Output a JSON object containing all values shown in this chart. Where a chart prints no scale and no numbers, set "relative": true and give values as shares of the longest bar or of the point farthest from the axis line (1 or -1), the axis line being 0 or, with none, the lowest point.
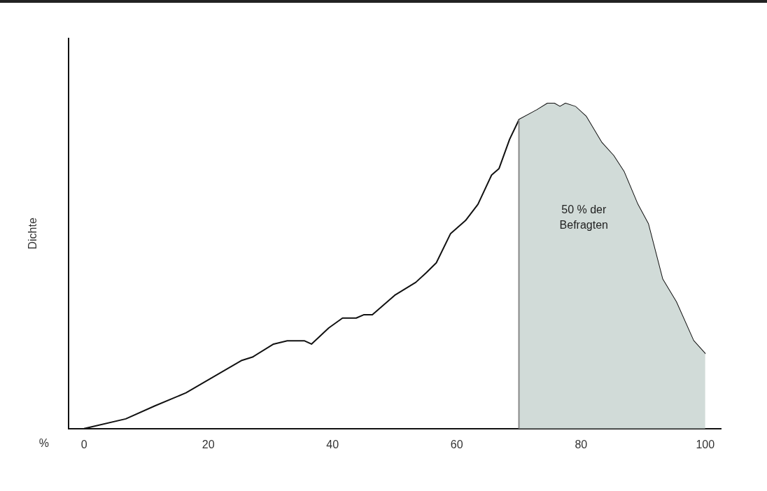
{
  "chart_data": {
    "type": "line",
    "relative": true,
    "xlabel": "%",
    "ylabel": "Dichte",
    "xlim": [
      -2.5,
      102.5
    ],
    "xticks": [
      0,
      20,
      40,
      60,
      80,
      100
    ],
    "grid": false,
    "legend": false,
    "marker": "none",
    "annotations": [
      "50 % der Befragten"
    ],
    "ref_lines": [
      {
        "axis": "x",
        "value": 70,
        "color": "#888888"
      }
    ],
    "series": [
      {
        "type": "area",
        "color": "#d1dbd8",
        "x": [
          70,
          72.9,
          74.6,
          75.7,
          76.6,
          77.5,
          79.1,
          80.8,
          83.3,
          85.2,
          86.9,
          89.1,
          90.8,
          93.1,
          95.3,
          98.1,
          100
        ],
        "values": [
          0.95,
          0.98,
          1.0,
          1.0,
          0.99,
          1.0,
          0.99,
          0.96,
          0.88,
          0.84,
          0.79,
          0.69,
          0.63,
          0.46,
          0.39,
          0.27,
          0.23
        ]
      },
      {
        "color": "#111111",
        "x": [
          0,
          6.7,
          11.4,
          16.4,
          20.9,
          25.4,
          27.1,
          30.5,
          32.7,
          35.5,
          36.6,
          39.4,
          41.6,
          43.8,
          45,
          46.4,
          50,
          53.4,
          55.1,
          56.7,
          59,
          61.4,
          63.4,
          65.6,
          66.8,
          68.5,
          70,
          72.9,
          74.6,
          75.7,
          76.6,
          77.5,
          79.1,
          80.8,
          83.3,
          85.2,
          86.9,
          89.1,
          90.8,
          93.1,
          95.3,
          98.1,
          100
        ],
        "values": [
          0,
          0.03,
          0.07,
          0.11,
          0.16,
          0.21,
          0.22,
          0.26,
          0.27,
          0.27,
          0.26,
          0.31,
          0.34,
          0.34,
          0.35,
          0.35,
          0.41,
          0.45,
          0.48,
          0.51,
          0.6,
          0.64,
          0.69,
          0.78,
          0.8,
          0.89,
          0.95,
          0.98,
          1.0,
          1.0,
          0.99,
          1.0,
          0.99,
          0.96,
          0.88,
          0.84,
          0.79,
          0.69,
          0.63,
          0.46,
          0.39,
          0.27,
          0.23
        ]
      }
    ]
  }
}
